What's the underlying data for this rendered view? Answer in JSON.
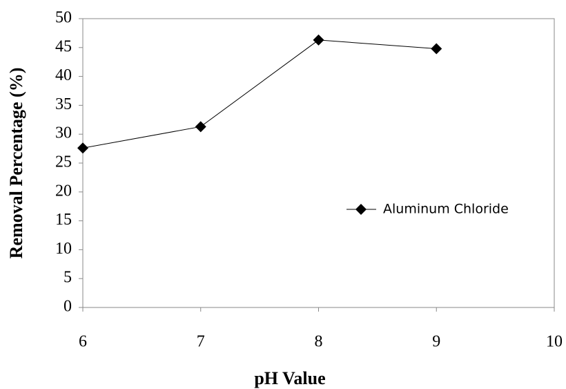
{
  "chart_data": {
    "type": "line",
    "x_label": "pH Value",
    "y_label": "Removal Percentage (%)",
    "x": [
      6,
      7,
      8,
      9
    ],
    "series": [
      {
        "name": "Aluminum Chloride",
        "color": "#000000",
        "values": [
          27.6,
          31.3,
          46.3,
          44.8
        ]
      }
    ],
    "xlim": [
      6,
      10
    ],
    "xticks": [
      6,
      7,
      8,
      9,
      10
    ],
    "ylim": [
      0,
      50
    ],
    "yticks": [
      0,
      5,
      10,
      15,
      20,
      25,
      30,
      35,
      40,
      45,
      50
    ],
    "legend": "center-right",
    "marker": "diamond",
    "grid": false
  }
}
